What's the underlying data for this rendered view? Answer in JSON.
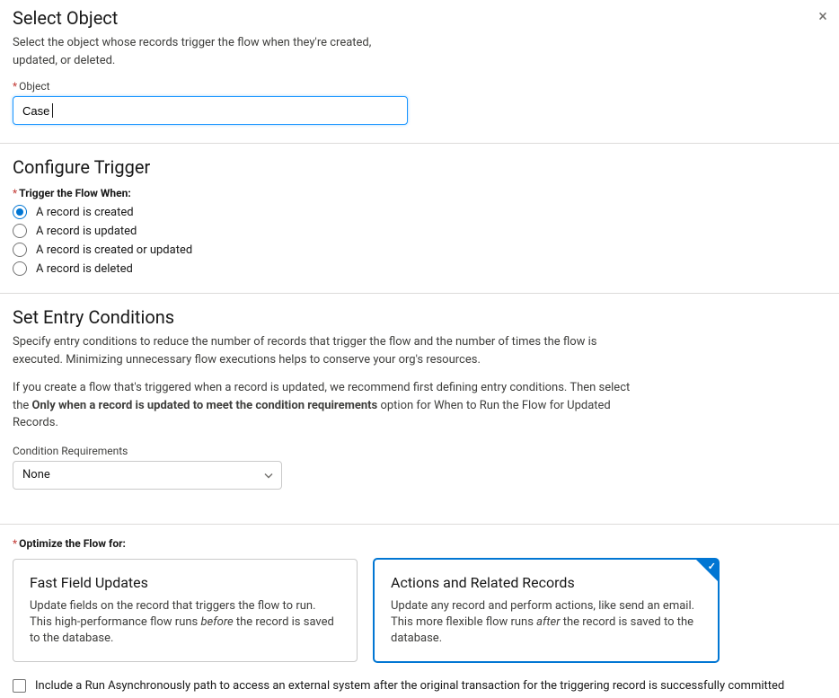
{
  "close_icon": "×",
  "select_object": {
    "heading": "Select Object",
    "description": "Select the object whose records trigger the flow when they're created, updated, or deleted.",
    "field_label": "Object",
    "value": "Case",
    "input_border_color": "#1b96ff"
  },
  "configure_trigger": {
    "heading": "Configure Trigger",
    "group_label": "Trigger the Flow When:",
    "options": [
      {
        "label": "A record is created",
        "checked": true
      },
      {
        "label": "A record is updated",
        "checked": false
      },
      {
        "label": "A record is created or updated",
        "checked": false
      },
      {
        "label": "A record is deleted",
        "checked": false
      }
    ]
  },
  "entry_conditions": {
    "heading": "Set Entry Conditions",
    "desc1": "Specify entry conditions to reduce the number of records that trigger the flow and the number of times the flow is executed. Minimizing unnecessary flow executions helps to conserve your org's resources.",
    "desc2_pre": "If you create a flow that's triggered when a record is updated, we recommend first defining entry conditions. Then select the ",
    "desc2_bold": "Only when a record is updated to meet the condition requirements",
    "desc2_post": " option for When to Run the Flow for Updated Records.",
    "req_label": "Condition Requirements",
    "req_value": "None"
  },
  "optimize": {
    "group_label": "Optimize the Flow for:",
    "selected_index": 1,
    "accent_color": "#0176d3",
    "cards": [
      {
        "title": "Fast Field Updates",
        "desc_pre": "Update fields on the record that triggers the flow to run. This high-performance flow runs ",
        "desc_em": "before",
        "desc_post": " the record is saved to the database."
      },
      {
        "title": "Actions and Related Records",
        "desc_pre": "Update any record and perform actions, like send an email. This more flexible flow runs ",
        "desc_em": "after",
        "desc_post": " the record is saved to the database."
      }
    ]
  },
  "async_checkbox": {
    "label": "Include a Run Asynchronously path to access an external system after the original transaction for the triggering record is successfully committed",
    "checked": false
  }
}
